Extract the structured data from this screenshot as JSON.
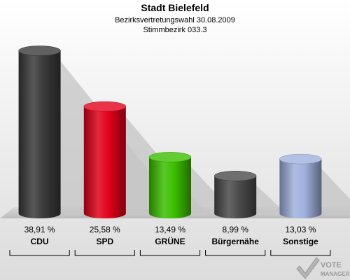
{
  "chart_data": {
    "type": "bar",
    "title": "Stadt Bielefeld",
    "subtitle_line1": "Bezirksvertretungswahl 30.08.2009",
    "subtitle_line2": "Stimmbezirk 033.3",
    "categories": [
      "CDU",
      "SPD",
      "GRÜNE",
      "Bürgernähe",
      "Sonstige"
    ],
    "values": [
      38.91,
      25.58,
      13.49,
      8.99,
      13.03
    ],
    "value_labels": [
      "38,91 %",
      "25,58 %",
      "13,49 %",
      "8,99 %",
      "13,03 %"
    ],
    "colors": [
      "#3a3a3a",
      "#e2001a",
      "#3cbf00",
      "#4a4a4a",
      "#9fb0dc"
    ],
    "ylim": [
      0,
      40
    ],
    "grid": false,
    "legend": "none"
  },
  "branding": {
    "logo_line1": "VOTE",
    "logo_line2": "MANAGER"
  }
}
